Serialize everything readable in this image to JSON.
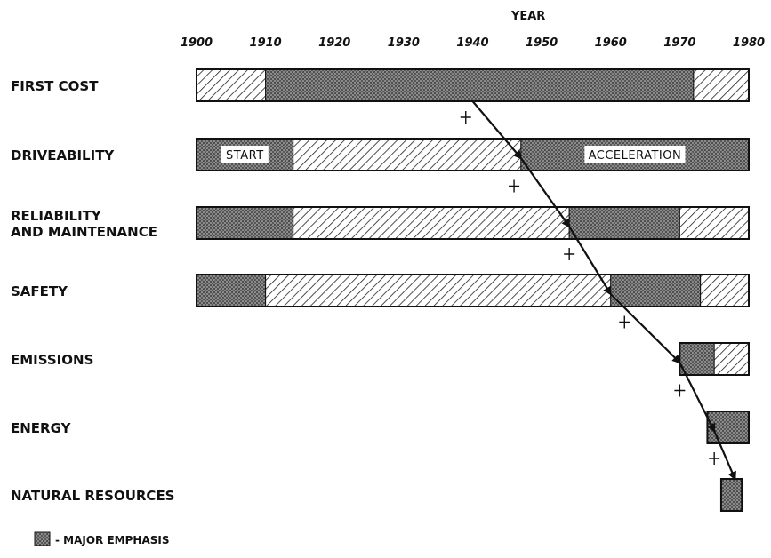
{
  "chart_data": {
    "type": "bar",
    "subtype": "gantt",
    "title": "YEAR",
    "x_ticks": [
      1900,
      1910,
      1920,
      1930,
      1940,
      1950,
      1960,
      1970,
      1980
    ],
    "xlim": [
      1900,
      1980
    ],
    "rows": [
      {
        "label": "FIRST COST",
        "segments": [
          {
            "start": 1900,
            "end": 1910,
            "emphasis": "minor"
          },
          {
            "start": 1910,
            "end": 1972,
            "emphasis": "major"
          },
          {
            "start": 1972,
            "end": 1980,
            "emphasis": "minor"
          }
        ]
      },
      {
        "label": "DRIVEABILITY",
        "segments": [
          {
            "start": 1900,
            "end": 1914,
            "emphasis": "major",
            "text": "START"
          },
          {
            "start": 1914,
            "end": 1947,
            "emphasis": "minor"
          },
          {
            "start": 1947,
            "end": 1980,
            "emphasis": "major",
            "text": "ACCELERATION"
          }
        ]
      },
      {
        "label": "RELIABILITY\nAND MAINTENANCE",
        "segments": [
          {
            "start": 1900,
            "end": 1914,
            "emphasis": "major"
          },
          {
            "start": 1914,
            "end": 1954,
            "emphasis": "minor"
          },
          {
            "start": 1954,
            "end": 1970,
            "emphasis": "major"
          },
          {
            "start": 1970,
            "end": 1980,
            "emphasis": "minor"
          }
        ]
      },
      {
        "label": "SAFETY",
        "segments": [
          {
            "start": 1900,
            "end": 1910,
            "emphasis": "major"
          },
          {
            "start": 1910,
            "end": 1960,
            "emphasis": "minor"
          },
          {
            "start": 1960,
            "end": 1973,
            "emphasis": "major"
          },
          {
            "start": 1973,
            "end": 1980,
            "emphasis": "minor"
          }
        ]
      },
      {
        "label": "EMISSIONS",
        "segments": [
          {
            "start": 1970,
            "end": 1975,
            "emphasis": "major"
          },
          {
            "start": 1975,
            "end": 1980,
            "emphasis": "minor"
          }
        ]
      },
      {
        "label": "ENERGY",
        "segments": [
          {
            "start": 1974,
            "end": 1980,
            "emphasis": "major"
          }
        ]
      },
      {
        "label": "NATURAL RESOURCES",
        "segments": [
          {
            "start": 1976,
            "end": 1979,
            "emphasis": "major"
          }
        ]
      }
    ],
    "trend_markers": [
      1939,
      1946,
      1954,
      1962,
      1970,
      1975
    ],
    "arrow_path": [
      1940,
      1947,
      1954,
      1960,
      1970,
      1975,
      1978
    ],
    "legend": {
      "label": "- MAJOR EMPHASIS",
      "placement": "bottom-left"
    },
    "colors": {
      "major": "#555555",
      "minor": "#ffffff",
      "line": "#111111"
    }
  }
}
